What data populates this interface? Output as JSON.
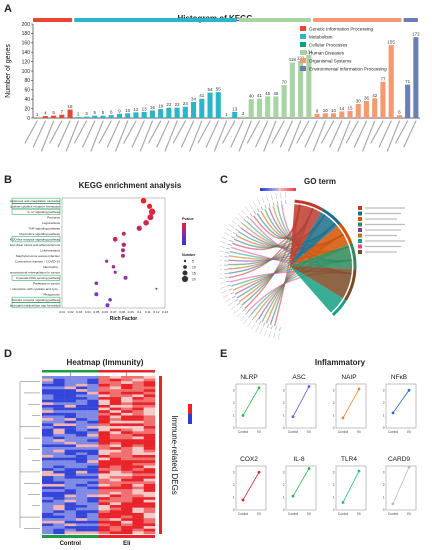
{
  "panels": {
    "A": {
      "letter": "A",
      "title": "Histogram of KEGG"
    },
    "B": {
      "letter": "B",
      "title": "KEGG enrichment analysis"
    },
    "C": {
      "letter": "C",
      "title": "GO term"
    },
    "D": {
      "letter": "D",
      "title": "Heatmap (Immunity)",
      "side_label": "Immune-related DEGs",
      "group_labels": [
        "Control",
        "Eli"
      ]
    },
    "E": {
      "letter": "E",
      "title": "Inflammatory"
    }
  },
  "chart_data": [
    {
      "type": "bar",
      "panel": "A",
      "title": "Histogram of KEGG",
      "ylabel": "Number of genes",
      "ylim": [
        0,
        200
      ],
      "yticks": [
        0,
        20,
        40,
        60,
        80,
        100,
        120,
        140,
        160,
        180,
        200
      ],
      "legend_position": "top-right",
      "legend": [
        {
          "label": "Genetic Information Processing",
          "color": "#e8472d"
        },
        {
          "label": "Metabolism",
          "color": "#2bb5c8"
        },
        {
          "label": "Cellular Processes",
          "color": "#139c7e"
        },
        {
          "label": "Human Diseases",
          "color": "#a8d4a4"
        },
        {
          "label": "Organismal Systems",
          "color": "#f49a72"
        },
        {
          "label": "Environmental Information Processing",
          "color": "#6c7fb2"
        }
      ],
      "values": [
        1,
        4,
        5,
        7,
        18,
        2,
        3,
        5,
        5,
        6,
        9,
        10,
        12,
        13,
        16,
        19,
        22,
        22,
        24,
        34,
        41,
        54,
        55,
        1,
        13,
        3,
        40,
        41,
        46,
        46,
        70,
        118,
        121,
        134,
        9,
        10,
        10,
        14,
        15,
        30,
        36,
        42,
        77,
        155,
        6,
        71,
        172
      ],
      "group_counts": [
        5,
        20,
        9,
        11,
        2
      ],
      "group_colors": [
        "#e8472d",
        "#2bb5c8",
        "#a8d4a4",
        "#f49a72",
        "#6c7fb2"
      ]
    },
    {
      "type": "scatter",
      "panel": "B",
      "title": "KEGG enrichment analysis",
      "xlabel": "Rich Factor",
      "xlim": [
        0.01,
        0.13
      ],
      "xticks": [
        "0.01",
        "0.02",
        "0.03",
        "0.04",
        "0.05",
        "0.06",
        "0.07",
        "0.08",
        "0.09",
        "0.1",
        "0.11",
        "0.12",
        "0.13"
      ],
      "legend_position": "right",
      "legend_pvalue_title": "Pvalue",
      "legend_number_title": "Number",
      "legend_number_values": [
        5,
        10,
        15,
        20
      ],
      "categories": [
        "Complement and coagulation cascades",
        "Cytokine-cytokine receptor interaction",
        "IL-17 signaling pathway",
        "Pertussis",
        "Legionellosis",
        "TNF signaling pathway",
        "Chemokine signaling pathway",
        "NOD-like receptor signaling pathway",
        "Fluid shear stress and atherosclerosis",
        "Leishmaniasis",
        "Staphylococcus aureus infection",
        "Coronavirus disease - COVID-19",
        "Neutrophil...",
        "Transcriptional misregulation in cancer",
        "Cytosolic DNA-sensing pathway",
        "Pathways in cancer",
        "Viral protein interaction with cytokine and cyto...",
        "Phagosome",
        "Toll-like receptor signaling pathway",
        "Neutrophil extracellular trap formation"
      ],
      "x": [
        0.105,
        0.112,
        0.115,
        0.113,
        0.108,
        0.1,
        0.082,
        0.072,
        0.082,
        0.081,
        0.081,
        0.062,
        0.07,
        0.072,
        0.084,
        0.05,
        0.12,
        0.05,
        0.066,
        0.063
      ],
      "sizes": [
        14,
        13,
        16,
        15,
        14,
        13,
        10,
        12,
        11,
        10,
        10,
        8,
        9,
        8,
        10,
        9,
        5,
        10,
        9,
        10
      ]
    },
    {
      "type": "line",
      "panel": "E",
      "title": "Inflammatory",
      "categories": [
        "Control",
        "Eli"
      ],
      "series": [
        {
          "name": "NLRP",
          "values": [
            1.0,
            3.2
          ]
        },
        {
          "name": "ASC",
          "values": [
            0.9,
            3.3
          ]
        },
        {
          "name": "NAIP",
          "values": [
            0.8,
            3.1
          ]
        },
        {
          "name": "NFκB",
          "values": [
            1.2,
            3.0
          ]
        },
        {
          "name": "COX2",
          "values": [
            0.8,
            3.0
          ]
        },
        {
          "name": "IL-8",
          "values": [
            1.1,
            3.3
          ]
        },
        {
          "name": "TLR4",
          "values": [
            0.6,
            3.1
          ]
        },
        {
          "name": "CARD9",
          "values": [
            0.5,
            3.4
          ]
        }
      ]
    }
  ],
  "colors": {
    "heat_high": "#e8242a",
    "heat_low": "#2a3bd6",
    "control_bar": "#1e9b45",
    "eli_bar": "#e8242a"
  }
}
